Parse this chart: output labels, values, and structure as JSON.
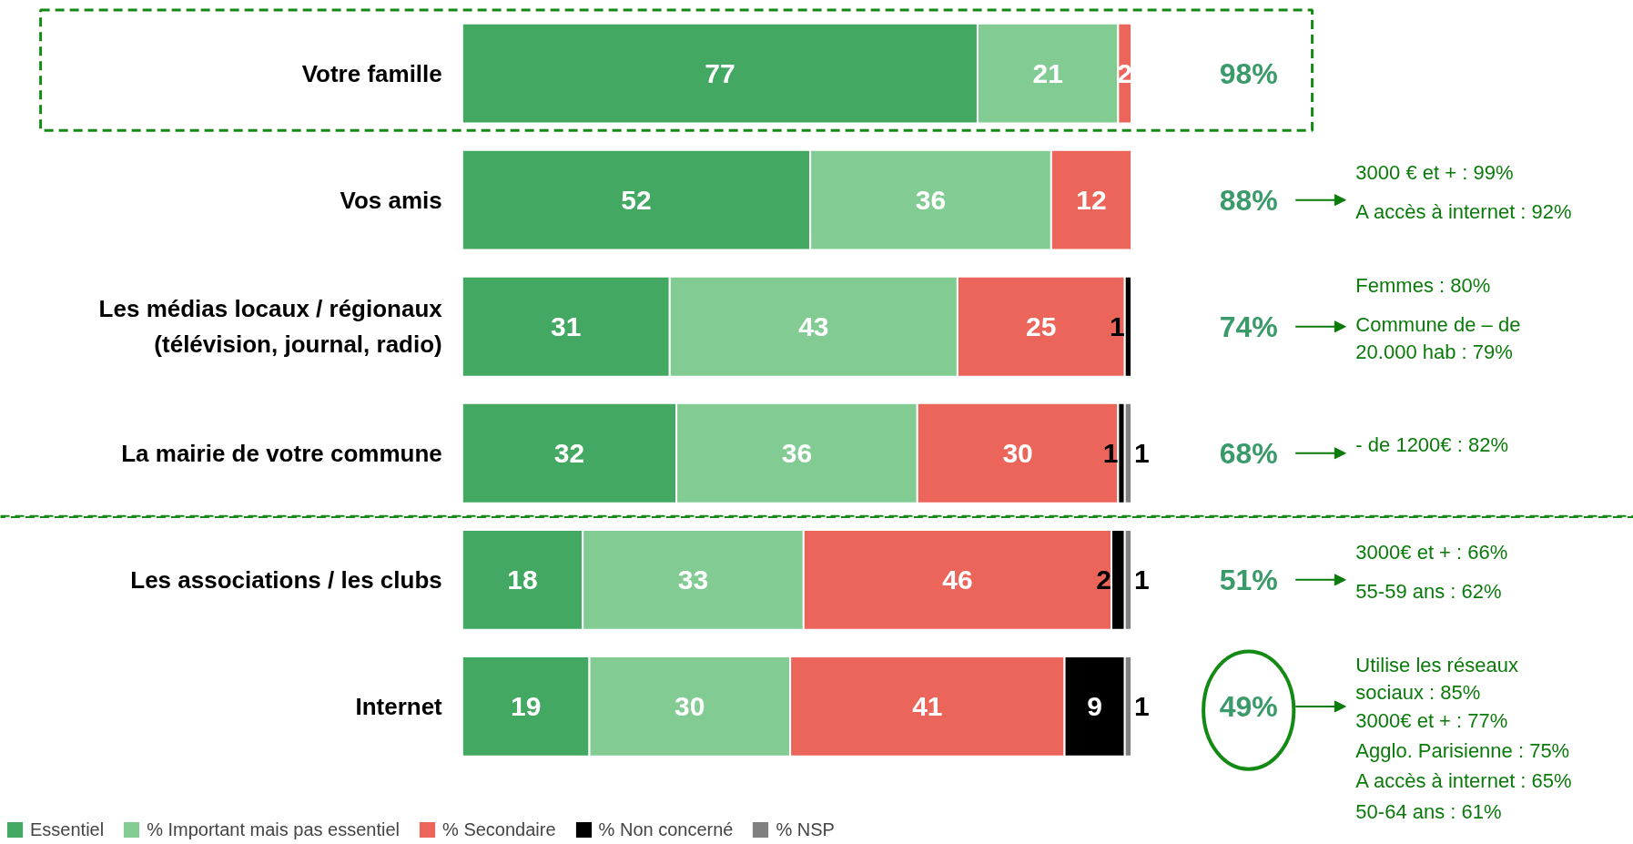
{
  "chart_data": {
    "type": "bar",
    "orientation": "horizontal",
    "stacked": true,
    "data_labels": true,
    "legend": "bottom",
    "categories": [
      "Votre famille",
      "Vos amis",
      "Les médias locaux / régionaux\n(télévision, journal, radio)",
      "La mairie de votre commune",
      "Les associations / les clubs",
      "Internet"
    ],
    "series": [
      {
        "name": "Essentiel",
        "color": "#43a862",
        "values": [
          77,
          52,
          31,
          32,
          18,
          19
        ]
      },
      {
        "name": "% Important mais pas essentiel",
        "color": "#82cc94",
        "values": [
          21,
          36,
          43,
          36,
          33,
          30
        ]
      },
      {
        "name": "% Secondaire",
        "color": "#ec655a",
        "values": [
          2,
          12,
          25,
          30,
          46,
          41
        ]
      },
      {
        "name": "% Non concerné",
        "color": "#000000",
        "values": [
          null,
          null,
          1,
          1,
          2,
          9
        ]
      },
      {
        "name": "% NSP",
        "color": "#808080",
        "values": [
          null,
          null,
          null,
          1,
          1,
          1
        ]
      }
    ],
    "annotations": [
      "98%",
      "88%",
      "3000 € et + : 99%",
      "A accès à internet : 92%",
      "74%",
      "Femmes : 80%",
      "Commune de – de\n20.000 hab : 79%",
      "68%",
      "- de 1200€ : 82%",
      "51%",
      "3000€ et + : 66%",
      "55-59 ans : 62%",
      "49%",
      "Utilise les réseaux\nsociaux : 85%",
      "3000€ et + : 77%",
      "Agglo. Parisienne : 75%",
      "A accès à internet : 65%",
      "50-64 ans : 61%"
    ]
  }
}
